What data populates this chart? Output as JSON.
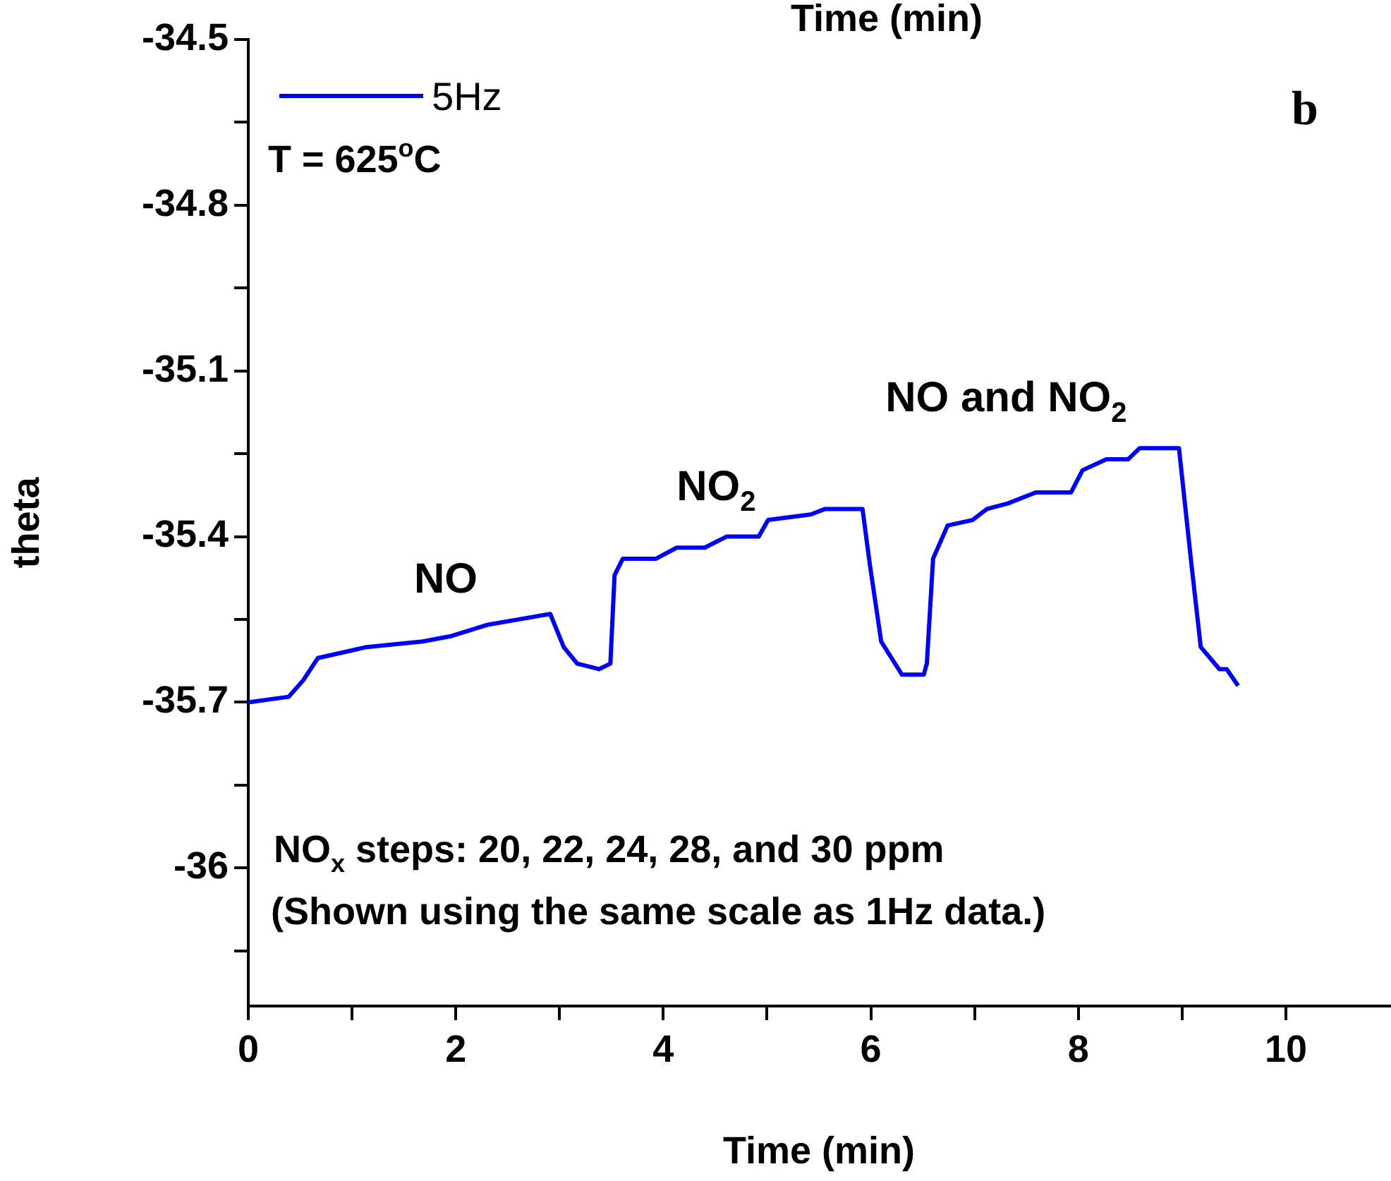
{
  "chart_data": {
    "type": "line",
    "title": "Time (min)",
    "xlabel": "Time (min)",
    "ylabel": "theta",
    "xlim": [
      0,
      11
    ],
    "xticks": [
      0,
      {
        "value": 1,
        "label": null
      },
      2,
      {
        "value": 3,
        "label": null
      },
      4,
      {
        "value": 5,
        "label": null
      },
      6,
      {
        "value": 7,
        "label": null
      },
      8,
      {
        "value": 9,
        "label": null
      },
      10
    ],
    "ylim": [
      -36.25,
      -34.5
    ],
    "yticks": [
      {
        "value": -36.15,
        "label": null
      },
      -36.0,
      {
        "value": -35.85,
        "label": null
      },
      -35.7,
      {
        "value": -35.55,
        "label": null
      },
      -35.4,
      {
        "value": -35.25,
        "label": null
      },
      -35.1,
      {
        "value": -34.95,
        "label": null
      },
      -34.8,
      {
        "value": -34.65,
        "label": null
      },
      -34.5
    ],
    "grid": false,
    "legend": "top left",
    "marker": "none",
    "line_style": "solid",
    "series": [
      {
        "name": "5Hz",
        "color": "#0000ff",
        "x": [
          0,
          0.39,
          0.53,
          0.67,
          1.14,
          1.68,
          1.96,
          2.3,
          2.91,
          3.04,
          3.17,
          3.38,
          3.49,
          3.53,
          3.61,
          3.93,
          4.13,
          4.4,
          4.61,
          4.92,
          5.01,
          5.42,
          5.56,
          5.92,
          5.99,
          6.1,
          6.3,
          6.51,
          6.54,
          6.6,
          6.74,
          6.98,
          7.12,
          7.32,
          7.59,
          7.93,
          8.04,
          8.27,
          8.48,
          8.59,
          8.97,
          9.09,
          9.18,
          9.36,
          9.43,
          9.54
        ],
        "values": [
          -35.7,
          -35.69,
          -35.66,
          -35.62,
          -35.6,
          -35.59,
          -35.58,
          -35.56,
          -35.54,
          -35.6,
          -35.63,
          -35.64,
          -35.63,
          -35.47,
          -35.44,
          -35.44,
          -35.42,
          -35.42,
          -35.4,
          -35.4,
          -35.37,
          -35.36,
          -35.35,
          -35.35,
          -35.45,
          -35.59,
          -35.65,
          -35.65,
          -35.63,
          -35.44,
          -35.38,
          -35.37,
          -35.35,
          -35.34,
          -35.32,
          -35.32,
          -35.28,
          -35.26,
          -35.26,
          -35.24,
          -35.24,
          -35.45,
          -35.6,
          -35.64,
          -35.64,
          -35.67
        ]
      }
    ],
    "annotations": [
      "b",
      "T = 625$^{o}$C",
      "NO$_{x}$ steps: 20, 22, 24, 28, and 30 ppm",
      "(Shown using the same scale as 1Hz data.)",
      "NO",
      "NO$_{2}$",
      "NO and NO$_{2}$"
    ]
  }
}
